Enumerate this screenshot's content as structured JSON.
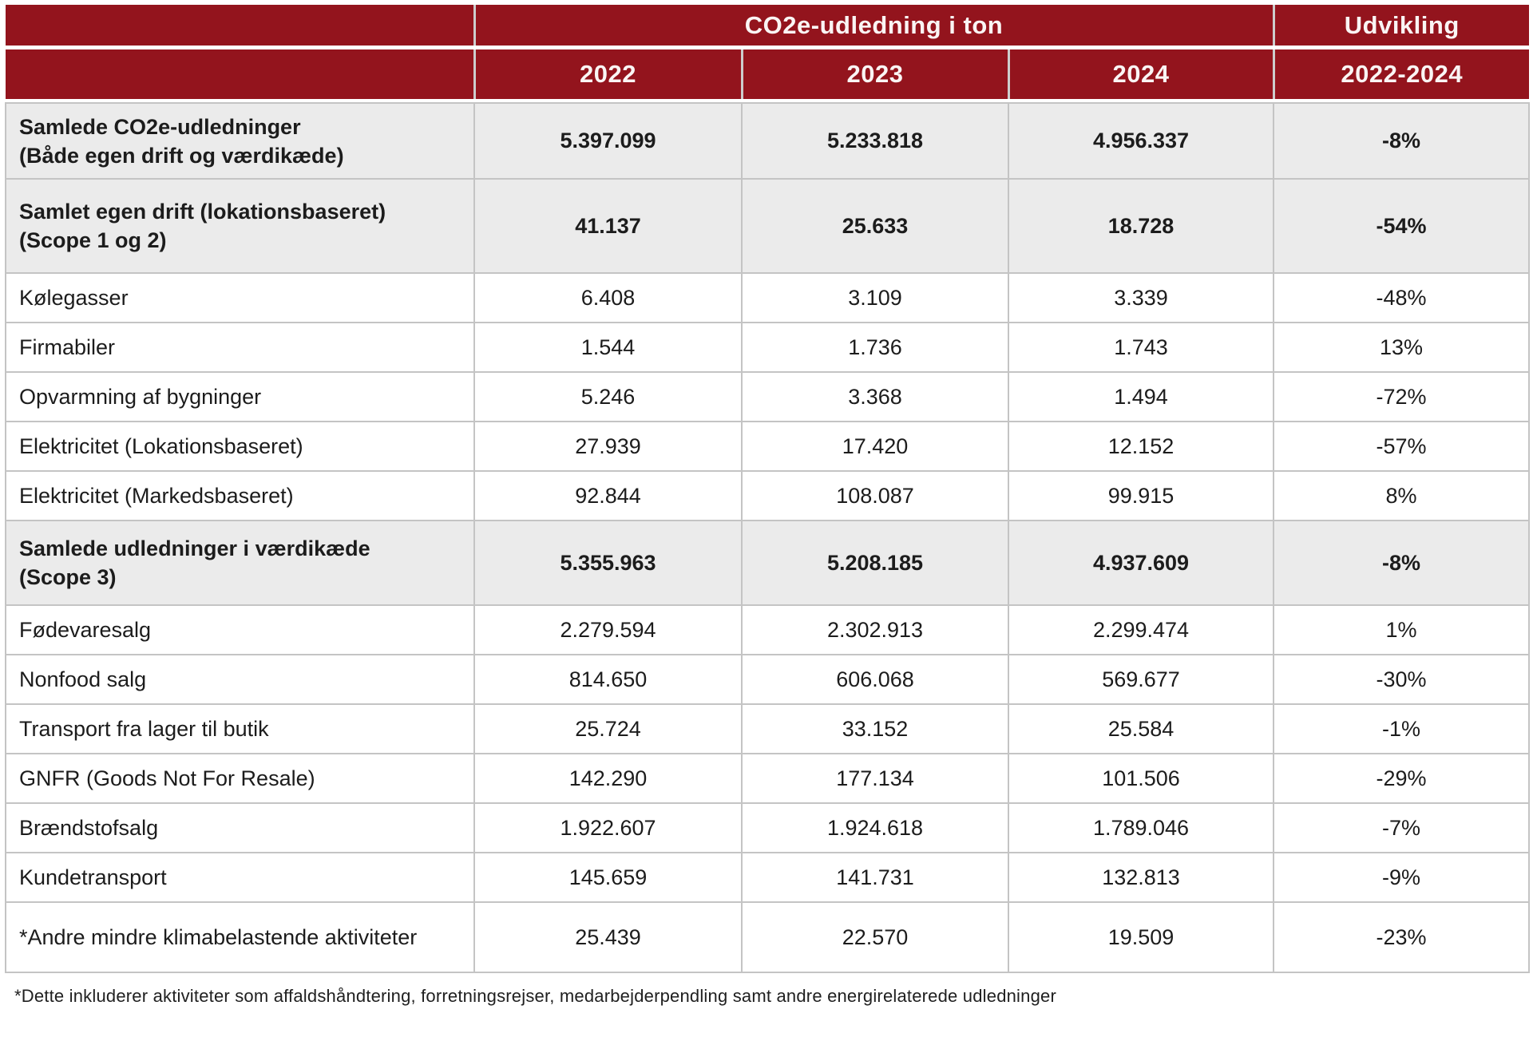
{
  "colors": {
    "header_red": "#93141d",
    "header_text": "#faf5f4",
    "summary_row_bg": "#ebebeb",
    "detail_row_bg": "#ffffff",
    "grid_line": "#c4c4c4",
    "body_text": "#1c1c1c"
  },
  "chart_data": {
    "type": "table",
    "title": "CO2e-udledning i ton",
    "header": {
      "group_title": "CO2e-udledning i ton",
      "development_title": "Udvikling",
      "years": [
        "2022",
        "2023",
        "2024"
      ],
      "development_range": "2022-2024"
    },
    "rows": [
      {
        "label": [
          "Samlede CO2e-udledninger",
          "(Både egen drift og værdikæde)"
        ],
        "values": [
          "5.397.099",
          "5.233.818",
          "4.956.337"
        ],
        "development": "-8%",
        "emphasis": true
      },
      {
        "label": [
          "Samlet egen drift (lokationsbaseret)",
          "(Scope 1 og 2)"
        ],
        "values": [
          "41.137",
          "25.633",
          "18.728"
        ],
        "development": "-54%",
        "emphasis": true
      },
      {
        "label": [
          "Kølegasser"
        ],
        "values": [
          "6.408",
          "3.109",
          "3.339"
        ],
        "development": "-48%",
        "emphasis": false
      },
      {
        "label": [
          "Firmabiler"
        ],
        "values": [
          "1.544",
          "1.736",
          "1.743"
        ],
        "development": "13%",
        "emphasis": false
      },
      {
        "label": [
          "Opvarmning af bygninger"
        ],
        "values": [
          "5.246",
          "3.368",
          "1.494"
        ],
        "development": "-72%",
        "emphasis": false
      },
      {
        "label": [
          "Elektricitet (Lokationsbaseret)"
        ],
        "values": [
          "27.939",
          "17.420",
          "12.152"
        ],
        "development": "-57%",
        "emphasis": false
      },
      {
        "label": [
          "Elektricitet (Markedsbaseret)"
        ],
        "values": [
          "92.844",
          "108.087",
          "99.915"
        ],
        "development": "8%",
        "emphasis": false
      },
      {
        "label": [
          "Samlede udledninger i værdikæde",
          "(Scope 3)"
        ],
        "values": [
          "5.355.963",
          "5.208.185",
          "4.937.609"
        ],
        "development": "-8%",
        "emphasis": true
      },
      {
        "label": [
          "Fødevaresalg"
        ],
        "values": [
          "2.279.594",
          "2.302.913",
          "2.299.474"
        ],
        "development": "1%",
        "emphasis": false
      },
      {
        "label": [
          "Nonfood salg"
        ],
        "values": [
          "814.650",
          "606.068",
          "569.677"
        ],
        "development": "-30%",
        "emphasis": false
      },
      {
        "label": [
          "Transport fra lager til butik"
        ],
        "values": [
          "25.724",
          "33.152",
          "25.584"
        ],
        "development": "-1%",
        "emphasis": false
      },
      {
        "label": [
          "GNFR (Goods Not For Resale)"
        ],
        "values": [
          "142.290",
          "177.134",
          "101.506"
        ],
        "development": "-29%",
        "emphasis": false
      },
      {
        "label": [
          "Brændstofsalg"
        ],
        "values": [
          "1.922.607",
          "1.924.618",
          "1.789.046"
        ],
        "development": "-7%",
        "emphasis": false
      },
      {
        "label": [
          "Kundetransport"
        ],
        "values": [
          "145.659",
          "141.731",
          "132.813"
        ],
        "development": "-9%",
        "emphasis": false
      },
      {
        "label": [
          "*Andre mindre klimabelastende aktiviteter"
        ],
        "values": [
          "25.439",
          "22.570",
          "19.509"
        ],
        "development": "-23%",
        "emphasis": false
      }
    ],
    "footnote": "*Dette inkluderer aktiviteter som affaldshåndtering, forretningsrejser, medarbejderpendling samt andre energirelaterede udledninger"
  }
}
